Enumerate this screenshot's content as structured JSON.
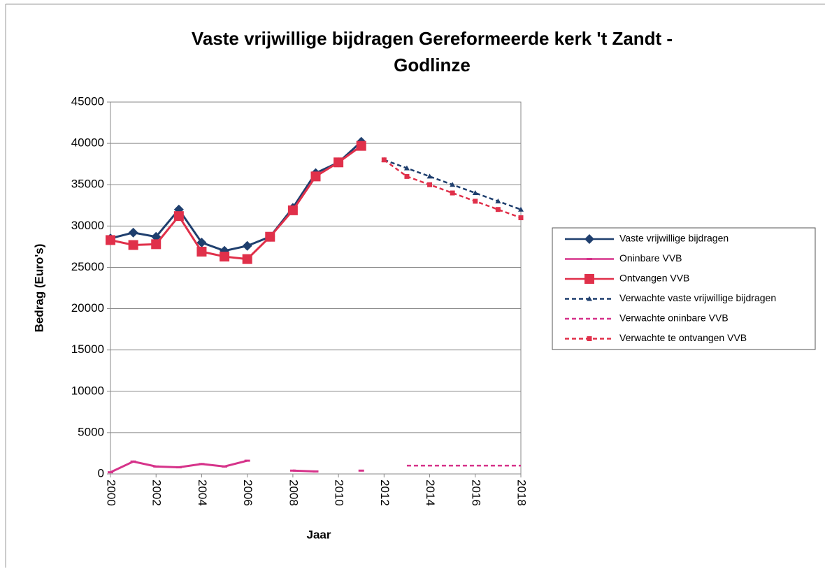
{
  "chart_data": {
    "type": "line",
    "title": [
      "Vaste vrijwillige bijdragen Gereformeerde kerk 't Zandt -",
      "Godlinze"
    ],
    "x_label": "Jaar",
    "y_label": "Bedrag (Euro's)",
    "x": [
      2000,
      2001,
      2002,
      2003,
      2004,
      2005,
      2006,
      2007,
      2008,
      2009,
      2010,
      2011,
      2012,
      2013,
      2014,
      2015,
      2016,
      2017,
      2018
    ],
    "xlim": [
      2000,
      2018
    ],
    "xticks": [
      2000,
      2002,
      2004,
      2006,
      2008,
      2010,
      2012,
      2014,
      2016,
      2018
    ],
    "ylim": [
      0,
      45000
    ],
    "yticks": [
      0,
      5000,
      10000,
      15000,
      20000,
      25000,
      30000,
      35000,
      40000,
      45000
    ],
    "grid": true,
    "legend": "right",
    "series": [
      {
        "name": "Vaste vrijwillige bijdragen",
        "color": "#1f3f6e",
        "marker": "diamond",
        "dashed": false,
        "values": [
          28500,
          29200,
          28700,
          32000,
          28000,
          27000,
          27600,
          28700,
          32200,
          36400,
          37700,
          40200,
          null,
          null,
          null,
          null,
          null,
          null,
          null
        ]
      },
      {
        "name": "Oninbare VVB",
        "color": "#d6338a",
        "marker": "dash",
        "dashed": false,
        "values": [
          200,
          1500,
          900,
          800,
          1200,
          900,
          1600,
          null,
          400,
          300,
          null,
          400,
          null,
          null,
          null,
          null,
          null,
          null,
          null
        ]
      },
      {
        "name": "Ontvangen VVB",
        "color": "#e0304a",
        "marker": "square",
        "dashed": false,
        "values": [
          28300,
          27700,
          27800,
          31200,
          26900,
          26300,
          26000,
          28700,
          31900,
          36000,
          37700,
          39700,
          null,
          null,
          null,
          null,
          null,
          null,
          null
        ]
      },
      {
        "name": "Verwachte vaste vrijwillige bijdragen",
        "color": "#1f3f6e",
        "marker": "triangle",
        "dashed": true,
        "values": [
          null,
          null,
          null,
          null,
          null,
          null,
          null,
          null,
          null,
          null,
          null,
          null,
          38000,
          37000,
          36000,
          35000,
          34000,
          33000,
          32000
        ]
      },
      {
        "name": "Verwachte oninbare VVB",
        "color": "#d6338a",
        "marker": "none",
        "dashed": true,
        "values": [
          null,
          null,
          null,
          null,
          null,
          null,
          null,
          null,
          null,
          null,
          null,
          null,
          null,
          1000,
          1000,
          1000,
          1000,
          1000,
          1000
        ]
      },
      {
        "name": "Verwachte te ontvangen VVB",
        "color": "#e0304a",
        "marker": "smallsquare",
        "dashed": true,
        "values": [
          null,
          null,
          null,
          null,
          null,
          null,
          null,
          null,
          null,
          null,
          null,
          null,
          38000,
          36000,
          35000,
          34000,
          33000,
          32000,
          31000
        ]
      }
    ]
  }
}
